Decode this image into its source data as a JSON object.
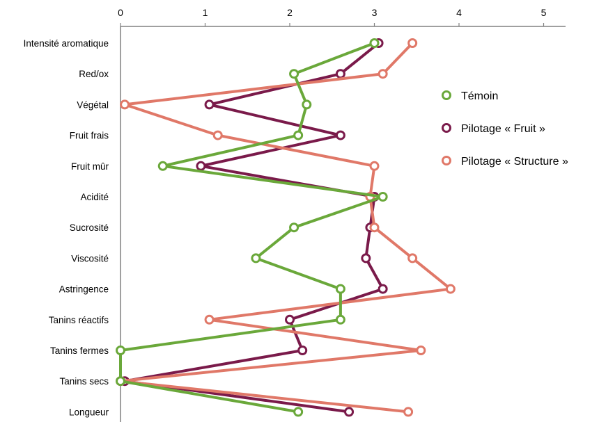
{
  "chart_data": {
    "type": "line",
    "orientation": "horizontal",
    "title": "",
    "xlabel": "",
    "ylabel": "",
    "xlim": [
      0,
      5
    ],
    "x_ticks": [
      "0",
      "1",
      "2",
      "3",
      "4",
      "5"
    ],
    "x_axis_position": "top",
    "grid": false,
    "legend_position": "right",
    "categories": [
      "Intensité aromatique",
      "Red/ox",
      "Végétal",
      "Fruit frais",
      "Fruit mûr",
      "Acidité",
      "Sucrosité",
      "Viscosité",
      "Astringence",
      "Tanins réactifs",
      "Tanins fermes",
      "Tanins secs",
      "Longueur"
    ],
    "series": [
      {
        "name": "Témoin",
        "color": "#6aa83a",
        "values": [
          3.0,
          2.05,
          2.2,
          2.1,
          0.5,
          3.1,
          2.05,
          1.6,
          2.6,
          2.6,
          0.0,
          0.0,
          2.1
        ]
      },
      {
        "name": "Pilotage « Fruit »",
        "color": "#7a1a4a",
        "values": [
          3.05,
          2.6,
          1.05,
          2.6,
          0.95,
          3.0,
          2.95,
          2.9,
          3.1,
          2.0,
          2.15,
          0.05,
          2.7
        ]
      },
      {
        "name": "Pilotage « Structure »",
        "color": "#e07868",
        "values": [
          3.45,
          3.1,
          0.05,
          1.15,
          3.0,
          2.95,
          3.0,
          3.45,
          3.9,
          1.05,
          3.55,
          0.0,
          3.4
        ]
      }
    ]
  }
}
